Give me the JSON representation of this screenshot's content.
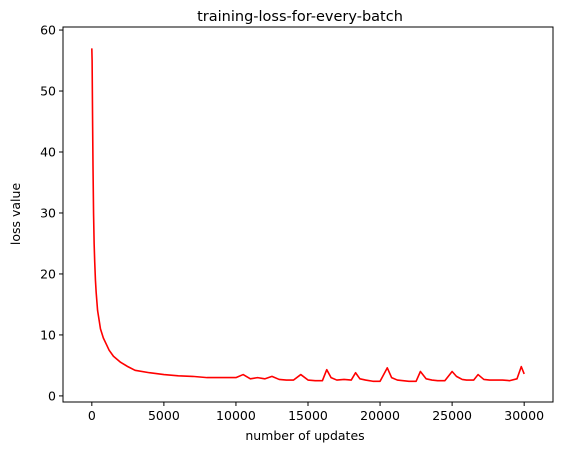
{
  "chart_data": {
    "type": "line",
    "title": "training-loss-for-every-batch",
    "xlabel": "number of updates",
    "ylabel": "loss value",
    "xlim": [
      -2000,
      32000
    ],
    "ylim": [
      -1,
      60.5
    ],
    "xticks": [
      0,
      5000,
      10000,
      15000,
      20000,
      25000,
      30000
    ],
    "yticks": [
      0,
      10,
      20,
      30,
      40,
      50,
      60
    ],
    "grid": false,
    "legend": "none",
    "color": "#ff0000",
    "series": [
      {
        "x": [
          0,
          20,
          50,
          80,
          120,
          160,
          200,
          250,
          300,
          400,
          500,
          600,
          800,
          1000,
          1200,
          1500,
          2000,
          2500,
          3000,
          4000,
          5000,
          6000,
          7000,
          8000,
          9000,
          10000,
          10500,
          11000,
          11500,
          12000,
          12500,
          13000,
          13500,
          14000,
          14500,
          15000,
          15500,
          16000,
          16300,
          16600,
          17000,
          17500,
          18000,
          18300,
          18600,
          19000,
          19500,
          20000,
          20500,
          20800,
          21200,
          21600,
          22000,
          22500,
          22800,
          23200,
          23600,
          24000,
          24500,
          25000,
          25300,
          25700,
          26000,
          26500,
          26800,
          27200,
          27600,
          28000,
          28500,
          29000,
          29500,
          29800,
          30000
        ],
        "y": [
          57,
          55,
          46,
          38,
          30,
          25,
          22,
          19,
          17,
          14,
          12.5,
          11,
          9.5,
          8.5,
          7.5,
          6.5,
          5.5,
          4.8,
          4.2,
          3.8,
          3.5,
          3.3,
          3.2,
          3.0,
          3.0,
          3.0,
          3.5,
          2.8,
          3.0,
          2.8,
          3.2,
          2.7,
          2.6,
          2.6,
          3.5,
          2.6,
          2.5,
          2.5,
          4.3,
          3.0,
          2.6,
          2.7,
          2.6,
          3.8,
          2.8,
          2.6,
          2.4,
          2.4,
          4.6,
          3.0,
          2.6,
          2.5,
          2.4,
          2.4,
          4.0,
          2.8,
          2.6,
          2.5,
          2.5,
          4.0,
          3.2,
          2.7,
          2.6,
          2.6,
          3.5,
          2.7,
          2.6,
          2.6,
          2.6,
          2.5,
          2.8,
          4.8,
          3.6
        ]
      }
    ]
  }
}
